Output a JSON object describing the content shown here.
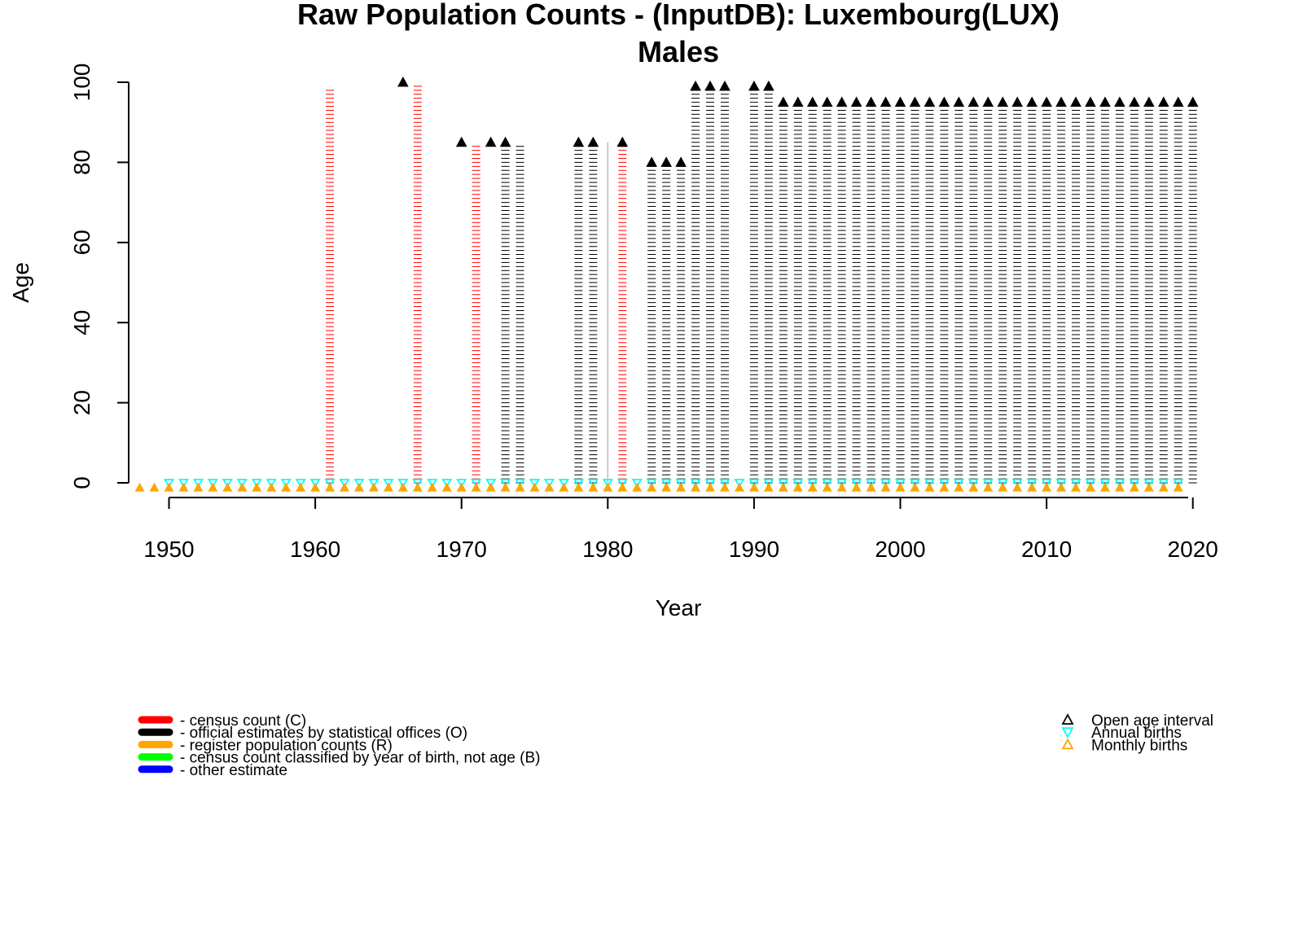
{
  "chart_data": {
    "type": "scatter",
    "title": "Raw Population Counts - (InputDB): Luxembourg(LUX)",
    "subtitle": "Males",
    "xlabel": "Year",
    "ylabel": "Age",
    "xlim": [
      1947,
      2020
    ],
    "ylim": [
      0,
      100
    ],
    "xticks": [
      "1950",
      "1960",
      "1970",
      "1980",
      "1990",
      "2000",
      "2010",
      "2020"
    ],
    "yticks": [
      "0",
      "20",
      "40",
      "60",
      "80",
      "100"
    ],
    "colors": {
      "census": "#ff0000",
      "official": "#000000",
      "register": "#ffa500",
      "birth_cohort": "#00ff00",
      "other": "#0000ff",
      "annual_births": "#00ffff",
      "monthly_births": "#ffa500",
      "grey_line": "#bebebe"
    },
    "age_columns": [
      {
        "year": 1961,
        "source": "census",
        "max_age": 98
      },
      {
        "year": 1967,
        "source": "census",
        "max_age": 99
      },
      {
        "year": 1971,
        "source": "census",
        "max_age": 84
      },
      {
        "year": 1973,
        "source": "official",
        "max_age": 84
      },
      {
        "year": 1974,
        "source": "official",
        "max_age": 84
      },
      {
        "year": 1978,
        "source": "official",
        "max_age": 84
      },
      {
        "year": 1979,
        "source": "official",
        "max_age": 84
      },
      {
        "year": 1981,
        "source": "census",
        "max_age": 84
      },
      {
        "year": 1983,
        "source": "official",
        "max_age": 79
      },
      {
        "year": 1984,
        "source": "official",
        "max_age": 79
      },
      {
        "year": 1985,
        "source": "official",
        "max_age": 79
      },
      {
        "year": 1986,
        "source": "official",
        "max_age": 98
      },
      {
        "year": 1987,
        "source": "official",
        "max_age": 98
      },
      {
        "year": 1988,
        "source": "official",
        "max_age": 98
      },
      {
        "year": 1990,
        "source": "official",
        "max_age": 98
      },
      {
        "year": 1991,
        "source": "official",
        "max_age": 98
      },
      {
        "year": 1992,
        "source": "official",
        "max_age": 94
      },
      {
        "year": 1993,
        "source": "official",
        "max_age": 94
      },
      {
        "year": 1994,
        "source": "official",
        "max_age": 94
      },
      {
        "year": 1995,
        "source": "official",
        "max_age": 94
      },
      {
        "year": 1996,
        "source": "official",
        "max_age": 94
      },
      {
        "year": 1997,
        "source": "official",
        "max_age": 94
      },
      {
        "year": 1998,
        "source": "official",
        "max_age": 94
      },
      {
        "year": 1999,
        "source": "official",
        "max_age": 94
      },
      {
        "year": 2000,
        "source": "official",
        "max_age": 94
      },
      {
        "year": 2001,
        "source": "official",
        "max_age": 94
      },
      {
        "year": 2002,
        "source": "official",
        "max_age": 94
      },
      {
        "year": 2003,
        "source": "official",
        "max_age": 94
      },
      {
        "year": 2004,
        "source": "official",
        "max_age": 94
      },
      {
        "year": 2005,
        "source": "official",
        "max_age": 94
      },
      {
        "year": 2006,
        "source": "official",
        "max_age": 94
      },
      {
        "year": 2007,
        "source": "official",
        "max_age": 94
      },
      {
        "year": 2008,
        "source": "official",
        "max_age": 94
      },
      {
        "year": 2009,
        "source": "official",
        "max_age": 94
      },
      {
        "year": 2010,
        "source": "official",
        "max_age": 94
      },
      {
        "year": 2011,
        "source": "official",
        "max_age": 94
      },
      {
        "year": 2012,
        "source": "official",
        "max_age": 94
      },
      {
        "year": 2013,
        "source": "official",
        "max_age": 94
      },
      {
        "year": 2014,
        "source": "official",
        "max_age": 94
      },
      {
        "year": 2015,
        "source": "official",
        "max_age": 94
      },
      {
        "year": 2016,
        "source": "official",
        "max_age": 94
      },
      {
        "year": 2017,
        "source": "official",
        "max_age": 94
      },
      {
        "year": 2018,
        "source": "official",
        "max_age": 94
      },
      {
        "year": 2019,
        "source": "official",
        "max_age": 94
      },
      {
        "year": 2020,
        "source": "official",
        "max_age": 94
      }
    ],
    "grey_lines": [
      {
        "year": 1980,
        "from_age": 0,
        "to_age": 85
      }
    ],
    "open_age_markers": [
      {
        "year": 1966,
        "age": 100
      },
      {
        "year": 1970,
        "age": 85
      },
      {
        "year": 1972,
        "age": 85
      },
      {
        "year": 1973,
        "age": 85
      },
      {
        "year": 1978,
        "age": 85
      },
      {
        "year": 1979,
        "age": 85
      },
      {
        "year": 1981,
        "age": 85
      },
      {
        "year": 1983,
        "age": 80
      },
      {
        "year": 1984,
        "age": 80
      },
      {
        "year": 1985,
        "age": 80
      },
      {
        "year": 1986,
        "age": 99
      },
      {
        "year": 1987,
        "age": 99
      },
      {
        "year": 1988,
        "age": 99
      },
      {
        "year": 1990,
        "age": 99
      },
      {
        "year": 1991,
        "age": 99
      },
      {
        "year": 1992,
        "age": 95
      },
      {
        "year": 1993,
        "age": 95
      },
      {
        "year": 1994,
        "age": 95
      },
      {
        "year": 1995,
        "age": 95
      },
      {
        "year": 1996,
        "age": 95
      },
      {
        "year": 1997,
        "age": 95
      },
      {
        "year": 1998,
        "age": 95
      },
      {
        "year": 1999,
        "age": 95
      },
      {
        "year": 2000,
        "age": 95
      },
      {
        "year": 2001,
        "age": 95
      },
      {
        "year": 2002,
        "age": 95
      },
      {
        "year": 2003,
        "age": 95
      },
      {
        "year": 2004,
        "age": 95
      },
      {
        "year": 2005,
        "age": 95
      },
      {
        "year": 2006,
        "age": 95
      },
      {
        "year": 2007,
        "age": 95
      },
      {
        "year": 2008,
        "age": 95
      },
      {
        "year": 2009,
        "age": 95
      },
      {
        "year": 2010,
        "age": 95
      },
      {
        "year": 2011,
        "age": 95
      },
      {
        "year": 2012,
        "age": 95
      },
      {
        "year": 2013,
        "age": 95
      },
      {
        "year": 2014,
        "age": 95
      },
      {
        "year": 2015,
        "age": 95
      },
      {
        "year": 2016,
        "age": 95
      },
      {
        "year": 2017,
        "age": 95
      },
      {
        "year": 2018,
        "age": 95
      },
      {
        "year": 2019,
        "age": 95
      },
      {
        "year": 2020,
        "age": 95
      }
    ],
    "annual_births_years": [
      1950,
      1951,
      1952,
      1953,
      1954,
      1955,
      1956,
      1957,
      1958,
      1959,
      1960,
      1961,
      1962,
      1963,
      1964,
      1965,
      1966,
      1967,
      1968,
      1969,
      1970,
      1971,
      1972,
      1973,
      1974,
      1975,
      1976,
      1977,
      1978,
      1979,
      1980,
      1981,
      1982,
      1983,
      1984,
      1985,
      1986,
      1987,
      1988,
      1989,
      1990,
      1991,
      1992,
      1993,
      1994,
      1995,
      1996,
      1997,
      1998,
      1999,
      2000,
      2001,
      2002,
      2003,
      2004,
      2005,
      2006,
      2007,
      2008,
      2009,
      2010,
      2011,
      2012,
      2013,
      2014,
      2015,
      2016,
      2017,
      2018,
      2019
    ],
    "monthly_births_years": [
      1948,
      1949,
      1950,
      1951,
      1952,
      1953,
      1954,
      1955,
      1956,
      1957,
      1958,
      1959,
      1960,
      1961,
      1962,
      1963,
      1964,
      1965,
      1966,
      1967,
      1968,
      1969,
      1970,
      1971,
      1972,
      1973,
      1974,
      1975,
      1976,
      1977,
      1978,
      1979,
      1980,
      1981,
      1982,
      1983,
      1984,
      1985,
      1986,
      1987,
      1988,
      1989,
      1990,
      1991,
      1992,
      1993,
      1994,
      1995,
      1996,
      1997,
      1998,
      1999,
      2000,
      2001,
      2002,
      2003,
      2004,
      2005,
      2006,
      2007,
      2008,
      2009,
      2010,
      2011,
      2012,
      2013,
      2014,
      2015,
      2016,
      2017,
      2018,
      2019
    ],
    "legend_left": [
      {
        "label": "- census count (C)",
        "color": "#ff0000"
      },
      {
        "label": "- official estimates by statistical offices (O)",
        "color": "#000000"
      },
      {
        "label": "- register population counts (R)",
        "color": "#ffa500"
      },
      {
        "label": "- census count classified by year of birth, not age (B)",
        "color": "#00ff00"
      },
      {
        "label": "- other estimate",
        "color": "#0000ff"
      }
    ],
    "legend_right": [
      {
        "label": "Open age interval",
        "symbol": "triangle-up",
        "color": "#000000"
      },
      {
        "label": "Annual births",
        "symbol": "triangle-down",
        "color": "#00ffff"
      },
      {
        "label": "Monthly births",
        "symbol": "triangle-up",
        "color": "#ffa500"
      }
    ],
    "legend_placement": "bottom"
  }
}
